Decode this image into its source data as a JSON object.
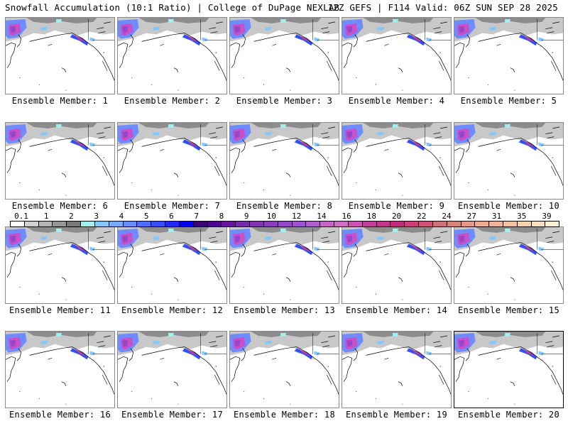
{
  "header": {
    "title_left": "Snowfall Accumulation (10:1 Ratio) | College of DuPage NEXLAB",
    "title_right": "12Z GEFS | F114 Valid: 06Z SUN SEP 28 2025"
  },
  "panels": [
    {
      "label": "Ensemble Member: 1"
    },
    {
      "label": "Ensemble Member: 2"
    },
    {
      "label": "Ensemble Member: 3"
    },
    {
      "label": "Ensemble Member: 4"
    },
    {
      "label": "Ensemble Member: 5"
    },
    {
      "label": "Ensemble Member: 6"
    },
    {
      "label": "Ensemble Member: 7"
    },
    {
      "label": "Ensemble Member: 8"
    },
    {
      "label": "Ensemble Member: 9"
    },
    {
      "label": "Ensemble Member: 10"
    },
    {
      "label": "Ensemble Member: 11"
    },
    {
      "label": "Ensemble Member: 12"
    },
    {
      "label": "Ensemble Member: 13"
    },
    {
      "label": "Ensemble Member: 14"
    },
    {
      "label": "Ensemble Member: 15"
    },
    {
      "label": "Ensemble Member: 16"
    },
    {
      "label": "Ensemble Member: 17"
    },
    {
      "label": "Ensemble Member: 18"
    },
    {
      "label": "Ensemble Member: 19"
    },
    {
      "label": "Ensemble Member: 20",
      "selected": true
    }
  ],
  "colorbar": {
    "labels": [
      "0.1",
      "1",
      "2",
      "3",
      "4",
      "5",
      "6",
      "7",
      "8",
      "9",
      "10",
      "12",
      "14",
      "16",
      "18",
      "20",
      "22",
      "24",
      "27",
      "31",
      "35",
      "39"
    ],
    "colors": [
      "#ffffff",
      "#d2d2d2",
      "#b4b4b4",
      "#969696",
      "#787878",
      "#a0f0f0",
      "#82c8ff",
      "#78aaff",
      "#648cff",
      "#4b6eff",
      "#3250ff",
      "#1e28ff",
      "#0000f0",
      "#3c0078",
      "#500096",
      "#6414a0",
      "#7828aa",
      "#8232b4",
      "#8c3cbe",
      "#9646c8",
      "#a050d2",
      "#b45ad2",
      "#c864c8",
      "#d26ec8",
      "#d250b4",
      "#c83ca0",
      "#c8328c",
      "#c8287d",
      "#d23c78",
      "#d25078",
      "#d26e78",
      "#dc8278",
      "#e69682",
      "#f0aa8c",
      "#f0b496",
      "#f5c3a0",
      "#fad2aa",
      "#fce1be",
      "#fff0d2"
    ]
  }
}
